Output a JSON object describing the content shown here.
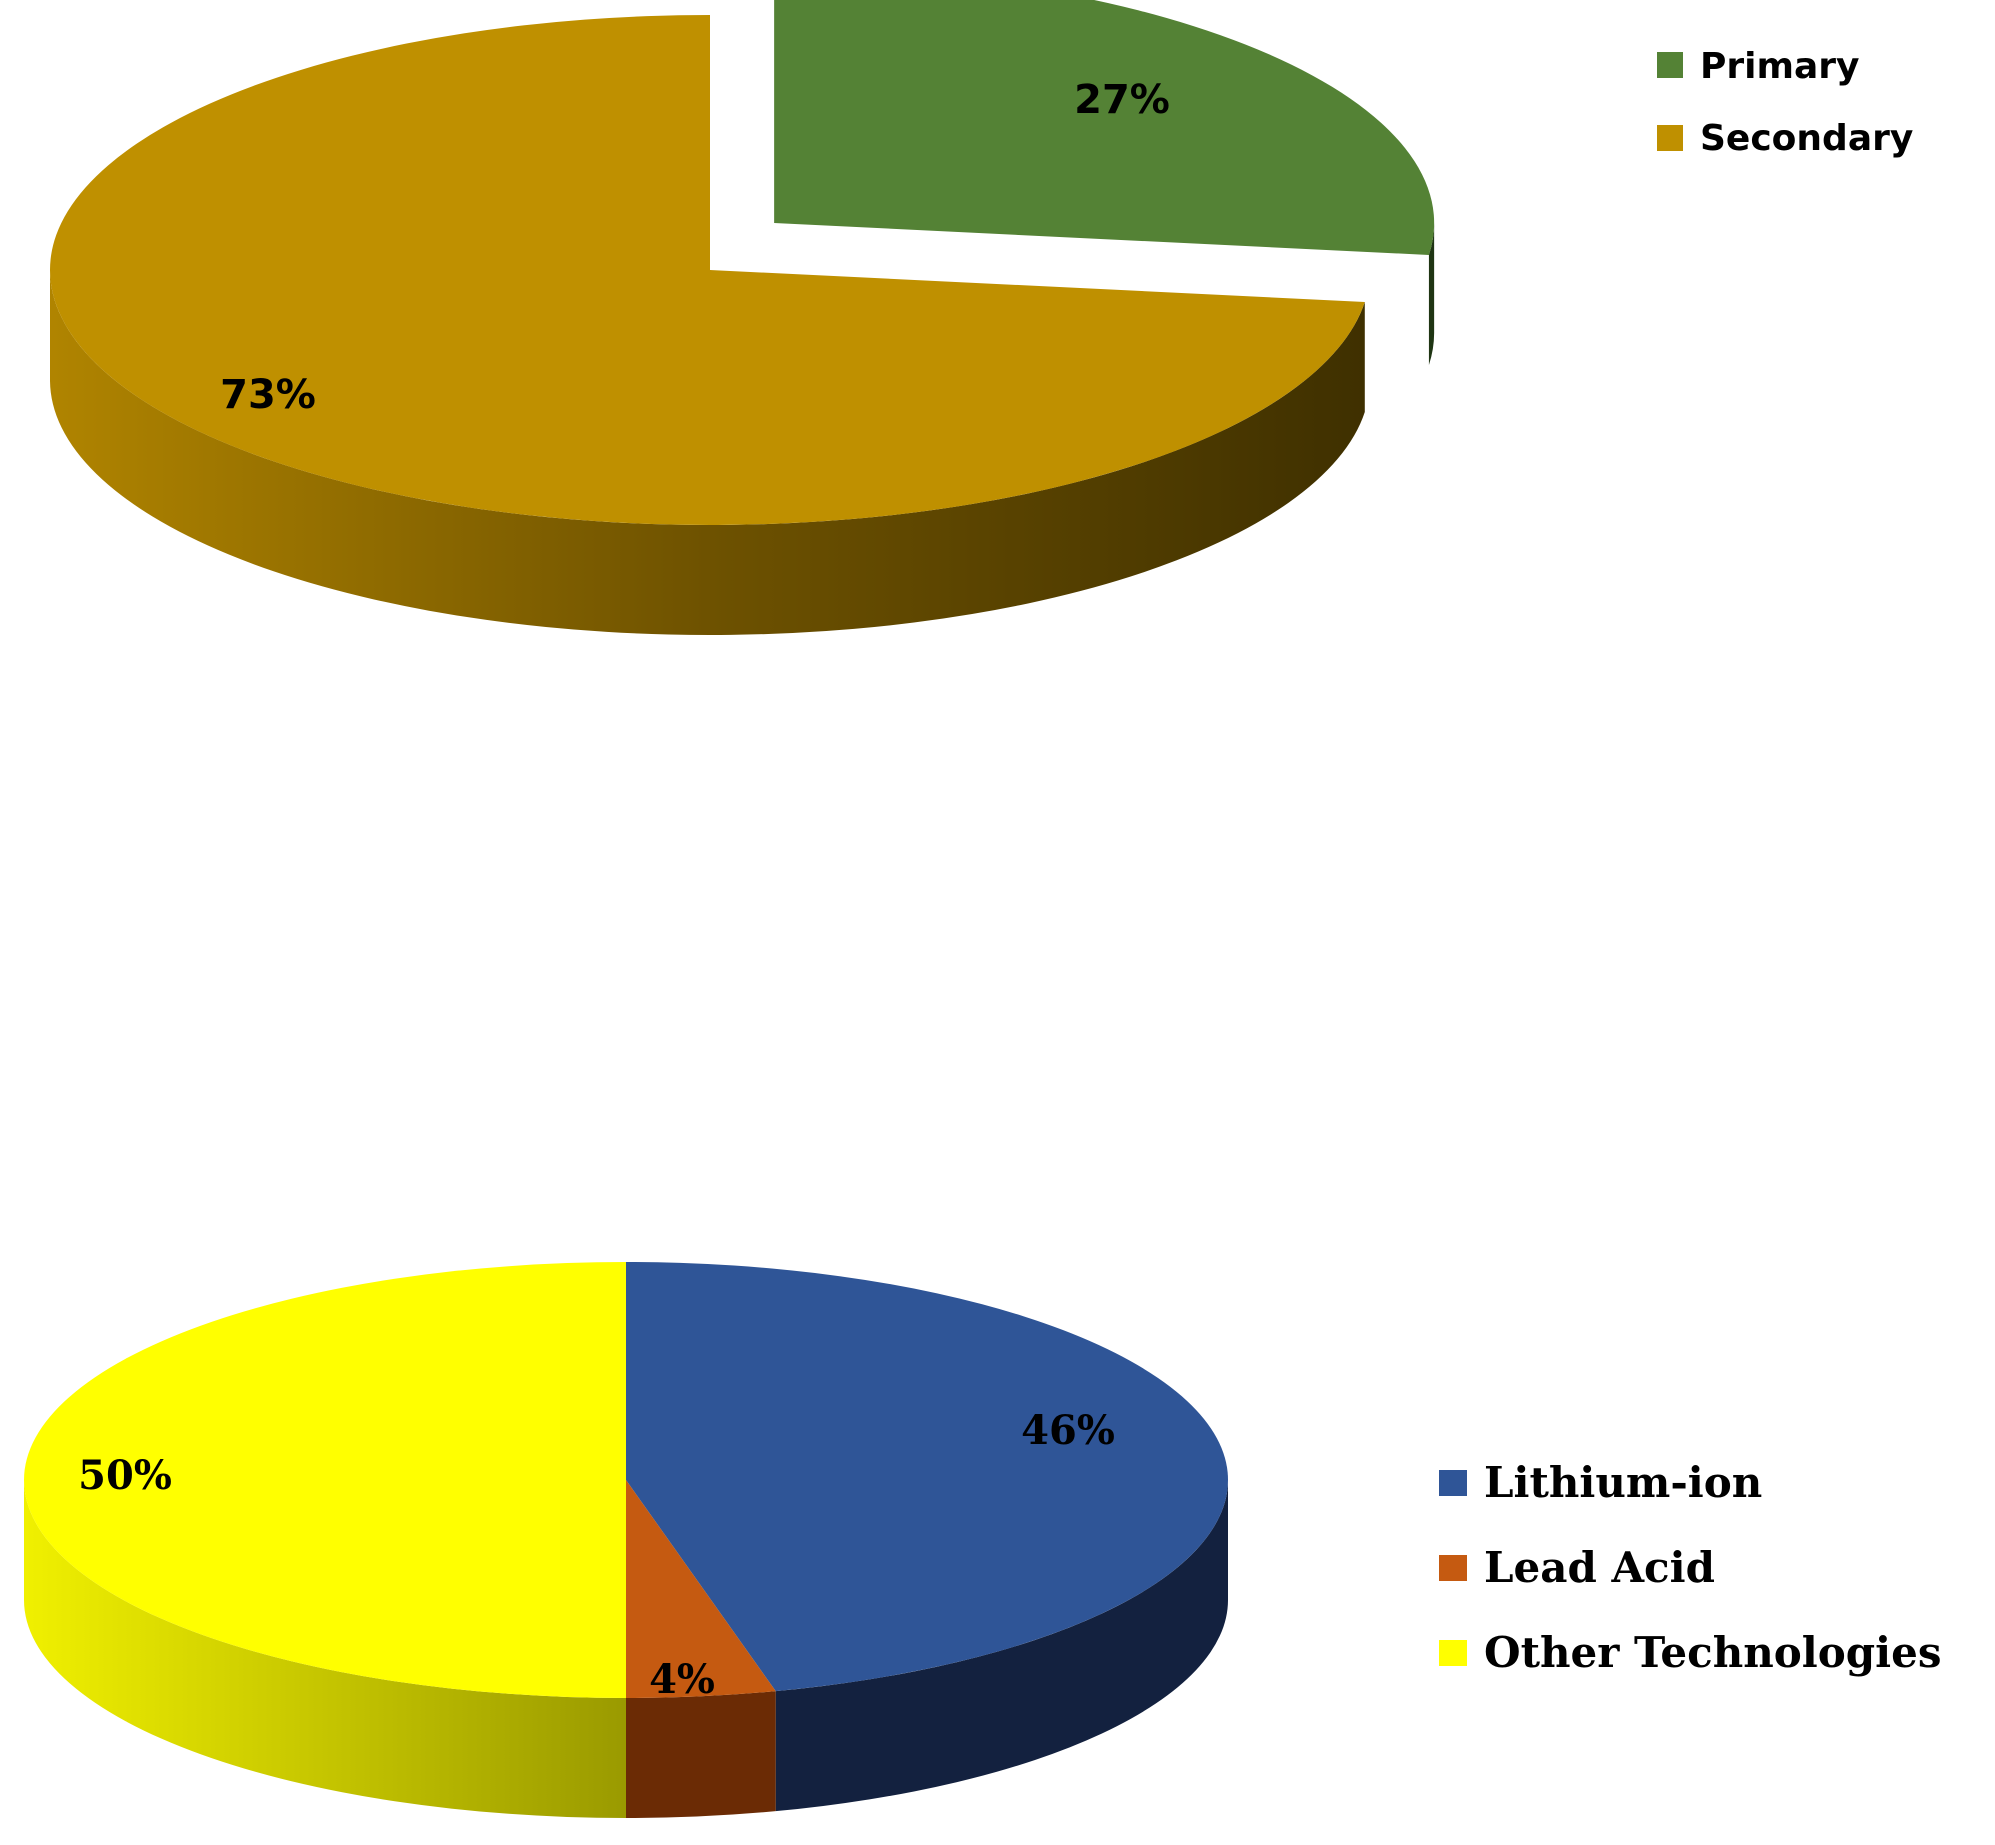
{
  "chart_data": [
    {
      "type": "pie",
      "title": "",
      "legend_position": "top-right",
      "exploded": [
        "Primary"
      ],
      "slices": [
        {
          "name": "Primary",
          "value": 27,
          "label": "27%",
          "color": "#548235",
          "side_color": "#1f3513"
        },
        {
          "name": "Secondary",
          "value": 73,
          "label": "73%",
          "color": "#bf9000",
          "side_color": "#7a5a00"
        }
      ]
    },
    {
      "type": "pie",
      "title": "",
      "legend_position": "right",
      "exploded": [],
      "slices": [
        {
          "name": "Lithium-ion",
          "value": 46,
          "label": "46%",
          "color": "#2f5597",
          "side_color": "#13213f"
        },
        {
          "name": "Lead Acid",
          "value": 4,
          "label": "4%",
          "color": "#c55a11",
          "side_color": "#6b2b05"
        },
        {
          "name": "Other Technologies",
          "value": 50,
          "label": "50%",
          "color": "#ffff00",
          "side_color": "#c8c800"
        }
      ]
    }
  ]
}
